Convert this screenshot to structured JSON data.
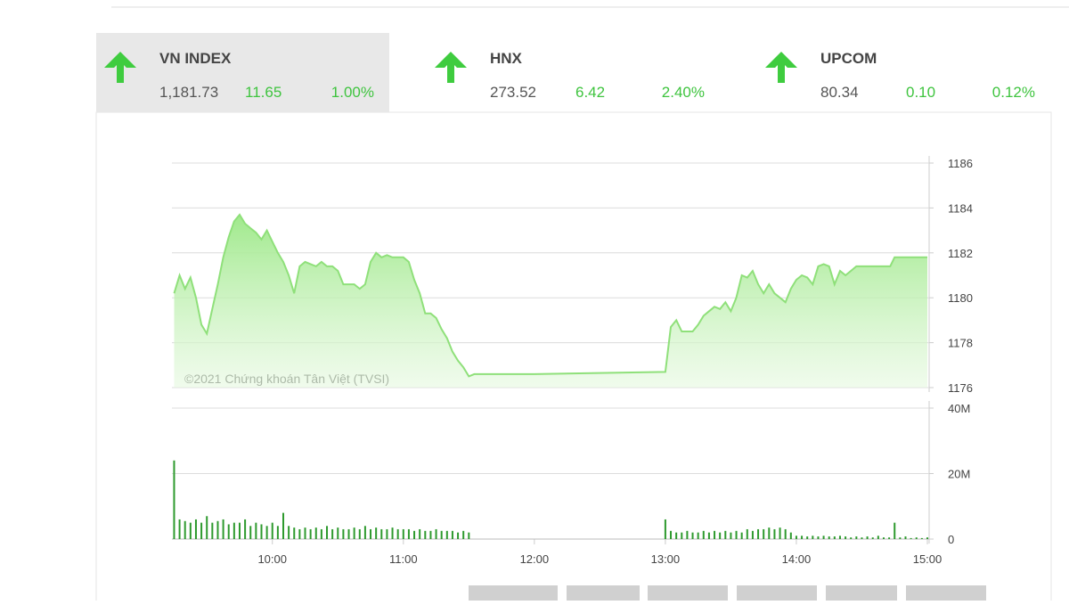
{
  "indices": [
    {
      "name": "VN INDEX",
      "value": "1,181.73",
      "change": "11.65",
      "percent": "1.00%"
    },
    {
      "name": "HNX",
      "value": "273.52",
      "change": "6.42",
      "percent": "2.40%"
    },
    {
      "name": "UPCOM",
      "value": "80.34",
      "change": "0.10",
      "percent": "0.12%"
    }
  ],
  "chart_data": [
    {
      "type": "area",
      "annotation": "©2021 Chứng khoán Tân Việt (TVSI)",
      "color": "#8fe07a",
      "x": [
        555,
        557.5,
        560,
        562.5,
        565,
        567.5,
        570,
        572.5,
        575,
        577.5,
        580,
        582.5,
        585,
        587.5,
        590,
        592.5,
        595,
        597.5,
        600,
        602.5,
        605,
        607.5,
        610,
        612.5,
        615,
        617.5,
        620,
        622.5,
        625,
        627.5,
        630,
        632.5,
        635,
        637.5,
        640,
        642.5,
        645,
        647.5,
        650,
        652.5,
        655,
        657.5,
        660,
        662.5,
        665,
        667.5,
        670,
        672.5,
        675,
        677.5,
        680,
        682.5,
        685,
        687.5,
        690,
        692.5,
        720,
        780,
        782.5,
        785,
        787.5,
        790,
        792.5,
        795,
        797.5,
        800,
        802.5,
        805,
        807.5,
        810,
        812.5,
        815,
        817.5,
        820,
        822.5,
        825,
        827.5,
        830,
        832.5,
        835,
        837.5,
        840,
        842.5,
        845,
        847.5,
        850,
        852.5,
        855,
        857.5,
        860,
        862.5,
        865,
        867.5,
        870,
        883,
        885,
        900
      ],
      "values": [
        1180.2,
        1181.0,
        1180.4,
        1180.9,
        1180.0,
        1178.8,
        1178.4,
        1179.5,
        1180.6,
        1181.8,
        1182.7,
        1183.4,
        1183.7,
        1183.3,
        1183.1,
        1182.9,
        1182.6,
        1183.0,
        1182.5,
        1182.0,
        1181.6,
        1181.0,
        1180.2,
        1181.4,
        1181.6,
        1181.5,
        1181.4,
        1181.6,
        1181.4,
        1181.4,
        1181.2,
        1180.6,
        1180.6,
        1180.6,
        1180.4,
        1180.6,
        1181.6,
        1182.0,
        1181.8,
        1181.9,
        1181.8,
        1181.8,
        1181.8,
        1181.6,
        1180.8,
        1180.2,
        1179.3,
        1179.3,
        1179.1,
        1178.6,
        1178.2,
        1177.6,
        1177.2,
        1176.9,
        1176.5,
        1176.6,
        1176.6,
        1176.7,
        1178.7,
        1179.0,
        1178.5,
        1178.5,
        1178.5,
        1178.8,
        1179.2,
        1179.4,
        1179.6,
        1179.5,
        1179.8,
        1179.4,
        1180.0,
        1181.0,
        1180.9,
        1181.2,
        1180.6,
        1180.2,
        1180.6,
        1180.2,
        1180.0,
        1179.8,
        1180.4,
        1180.8,
        1181.0,
        1180.9,
        1180.6,
        1181.4,
        1181.5,
        1181.4,
        1180.6,
        1181.2,
        1181.0,
        1181.2,
        1181.4,
        1181.4,
        1181.4,
        1181.8,
        1181.8
      ],
      "xlim": [
        554,
        900
      ],
      "ylim": [
        1176,
        1186
      ],
      "yticks": [
        1176,
        1178,
        1180,
        1182,
        1184,
        1186
      ],
      "grid": true
    },
    {
      "type": "bar",
      "color": "#2e9a2e",
      "x": [
        555,
        557.5,
        560,
        562.5,
        565,
        567.5,
        570,
        572.5,
        575,
        577.5,
        580,
        582.5,
        585,
        587.5,
        590,
        592.5,
        595,
        597.5,
        600,
        602.5,
        605,
        607.5,
        610,
        612.5,
        615,
        617.5,
        620,
        622.5,
        625,
        627.5,
        630,
        632.5,
        635,
        637.5,
        640,
        642.5,
        645,
        647.5,
        650,
        652.5,
        655,
        657.5,
        660,
        662.5,
        665,
        667.5,
        670,
        672.5,
        675,
        677.5,
        680,
        682.5,
        685,
        687.5,
        690,
        780,
        782.5,
        785,
        787.5,
        790,
        792.5,
        795,
        797.5,
        800,
        802.5,
        805,
        807.5,
        810,
        812.5,
        815,
        817.5,
        820,
        822.5,
        825,
        827.5,
        830,
        832.5,
        835,
        837.5,
        840,
        842.5,
        845,
        847.5,
        850,
        852.5,
        855,
        857.5,
        860,
        862.5,
        865,
        867.5,
        870,
        872.5,
        875,
        877.5,
        880,
        882.5,
        885,
        887.5,
        890,
        892.5,
        895,
        897.5,
        900
      ],
      "values": [
        24000000,
        6000000,
        5500000,
        5000000,
        6000000,
        5000000,
        7000000,
        5000000,
        5500000,
        6000000,
        4500000,
        5000000,
        5000000,
        6000000,
        4000000,
        5000000,
        4500000,
        4000000,
        5000000,
        4000000,
        8000000,
        4000000,
        3500000,
        3000000,
        3500000,
        3000000,
        3500000,
        3000000,
        4000000,
        3000000,
        3500000,
        3000000,
        3000000,
        3500000,
        3000000,
        4000000,
        3000000,
        3500000,
        3000000,
        3000000,
        3500000,
        3000000,
        3000000,
        3000000,
        2500000,
        3000000,
        2500000,
        2500000,
        3000000,
        2500000,
        2500000,
        2500000,
        2000000,
        2500000,
        2000000,
        6000000,
        2500000,
        2000000,
        2000000,
        2500000,
        2000000,
        2000000,
        2500000,
        2000000,
        2500000,
        2000000,
        2500000,
        2000000,
        2500000,
        2000000,
        3000000,
        2500000,
        3000000,
        3000000,
        3500000,
        3000000,
        3500000,
        3000000,
        2000000,
        1000000,
        1000000,
        800000,
        1000000,
        800000,
        1000000,
        800000,
        800000,
        1000000,
        800000,
        500000,
        800000,
        500000,
        800000,
        500000,
        1000000,
        500000,
        500000,
        5000000,
        500000,
        800000,
        300000,
        500000,
        300000,
        500000
      ],
      "xlim": [
        554,
        900
      ],
      "xticks": [
        {
          "value": 600,
          "label": "10:00"
        },
        {
          "value": 660,
          "label": "11:00"
        },
        {
          "value": 720,
          "label": "12:00"
        },
        {
          "value": 780,
          "label": "13:00"
        },
        {
          "value": 840,
          "label": "14:00"
        },
        {
          "value": 900,
          "label": "15:00"
        }
      ],
      "ylim": [
        0,
        40000000
      ],
      "yticks": [
        {
          "value": 0,
          "label": "0"
        },
        {
          "value": 20000000,
          "label": "20M"
        },
        {
          "value": 40000000,
          "label": "40M"
        }
      ],
      "grid": true
    }
  ]
}
